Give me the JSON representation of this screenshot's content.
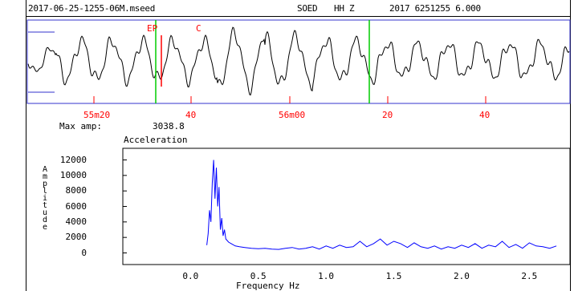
{
  "header": {
    "filename": "2017-06-25-1255-06M.mseed",
    "station": "SOED",
    "channel": "HH Z",
    "datetime": "2017 6251255 6.000"
  },
  "seismogram": {
    "phase_labels": [
      "EP",
      "C"
    ],
    "time_ticks": [
      "55m20",
      "40",
      "56m00",
      "20",
      "40"
    ],
    "colors": {
      "frame": "#3333cc",
      "trace": "#000000",
      "green_marker": "#00cc00",
      "red_marker": "#ff0000"
    }
  },
  "info": {
    "max_amp_label": "Max amp:",
    "max_amp_value": "3038.8",
    "quantity": "Acceleration"
  },
  "chart_data": {
    "type": "line",
    "title": "Acceleration",
    "xlabel": "Frequency  Hz",
    "ylabel": "Amplitude",
    "xlim": [
      -0.5,
      2.8
    ],
    "ylim": [
      -1500,
      13500
    ],
    "x_ticks": [
      "0.0",
      "0.5",
      "1.0",
      "1.5",
      "2.0",
      "2.5"
    ],
    "y_ticks": [
      "12000",
      "10000",
      "8000",
      "6000",
      "4000",
      "2000",
      "0"
    ],
    "series": [
      {
        "color": "#0000ff",
        "x": [
          0.12,
          0.13,
          0.14,
          0.15,
          0.16,
          0.17,
          0.18,
          0.19,
          0.2,
          0.21,
          0.22,
          0.23,
          0.24,
          0.25,
          0.26,
          0.28,
          0.3,
          0.33,
          0.36,
          0.4,
          0.45,
          0.5,
          0.55,
          0.6,
          0.65,
          0.7,
          0.75,
          0.8,
          0.85,
          0.9,
          0.95,
          1.0,
          1.05,
          1.1,
          1.15,
          1.2,
          1.25,
          1.3,
          1.35,
          1.4,
          1.45,
          1.5,
          1.55,
          1.6,
          1.65,
          1.7,
          1.75,
          1.8,
          1.85,
          1.9,
          1.95,
          2.0,
          2.05,
          2.1,
          2.15,
          2.2,
          2.25,
          2.3,
          2.35,
          2.4,
          2.45,
          2.5,
          2.55,
          2.6,
          2.65,
          2.7
        ],
        "y": [
          1000,
          2500,
          5500,
          4000,
          9000,
          12000,
          7000,
          11000,
          6000,
          8500,
          3000,
          4500,
          2200,
          3000,
          1800,
          1400,
          1200,
          900,
          800,
          700,
          600,
          550,
          600,
          500,
          450,
          600,
          700,
          500,
          600,
          800,
          500,
          900,
          600,
          1000,
          700,
          800,
          1500,
          800,
          1200,
          1800,
          1000,
          1500,
          1200,
          700,
          1300,
          800,
          600,
          900,
          500,
          800,
          600,
          1000,
          700,
          1200,
          600,
          1000,
          800,
          1500,
          700,
          1100,
          600,
          1300,
          900,
          800,
          600,
          900
        ]
      }
    ]
  }
}
